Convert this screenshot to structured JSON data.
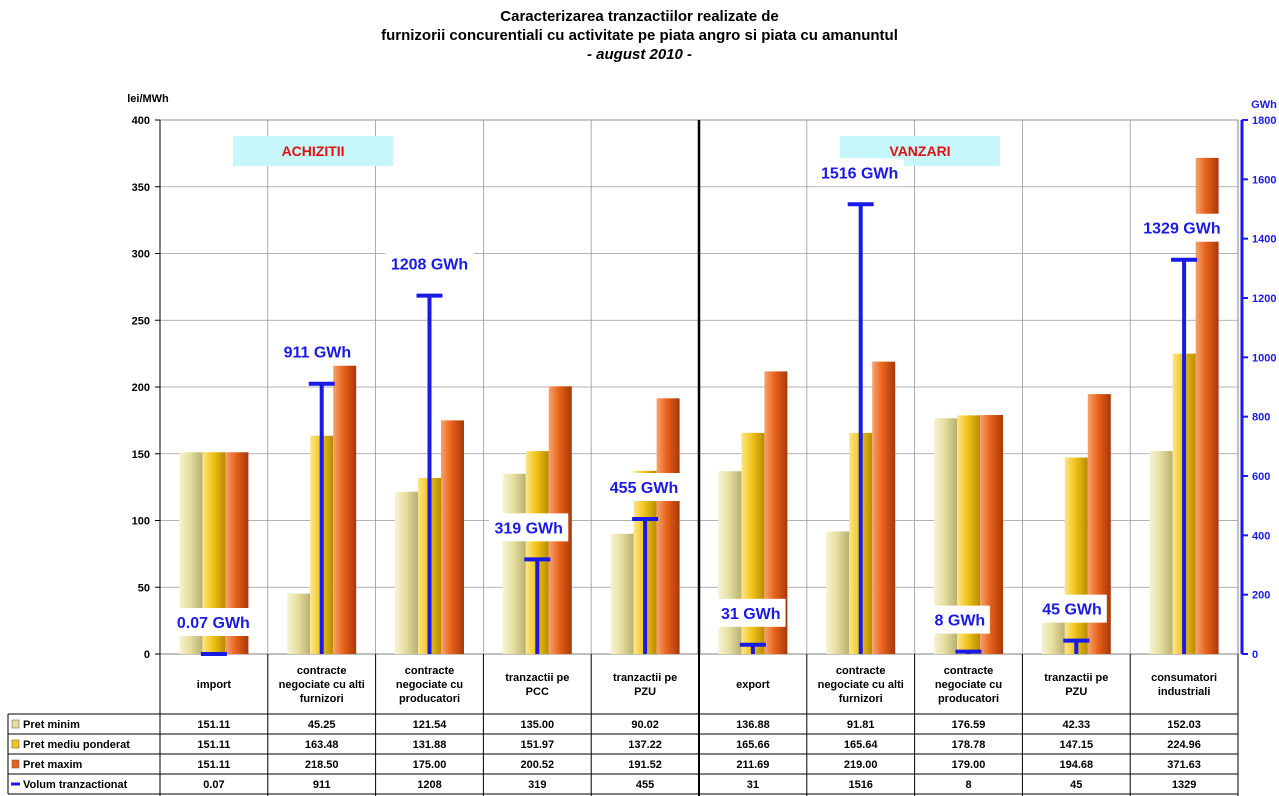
{
  "title_line1": "Caracterizarea tranzactiilor realizate de",
  "title_line2": "furnizorii concurentiali cu activitate pe piata angro si piata cu amanuntul",
  "title_line3": "- august 2010 -",
  "colors": {
    "pret_minim": "#e6dfa0",
    "pret_mediu": "#f2c419",
    "pret_maxim": "#e8621a",
    "volum": "#1a1ae6",
    "grid": "#9a9a9a",
    "section_label_bg": "#c8f7fb",
    "section_label_text": "#e01010"
  },
  "chart_data": {
    "type": "bar",
    "categories": [
      "import",
      "contracte negociate cu alti furnizori",
      "contracte negociate cu producatori",
      "tranzactii pe PCC",
      "tranzactii pe PZU",
      "export",
      "contracte negociate cu alti furnizori",
      "contracte negociate cu producatori",
      "tranzactii pe PZU",
      "consumatori industriali"
    ],
    "category_lines": [
      [
        "import"
      ],
      [
        "contracte",
        "negociate cu alti",
        "furnizori"
      ],
      [
        "contracte",
        "negociate cu",
        "producatori"
      ],
      [
        "tranzactii pe",
        "PCC"
      ],
      [
        "tranzactii pe",
        "PZU"
      ],
      [
        "export"
      ],
      [
        "contracte",
        "negociate cu alti",
        "furnizori"
      ],
      [
        "contracte",
        "negociate cu",
        "producatori"
      ],
      [
        "tranzactii pe",
        "PZU"
      ],
      [
        "consumatori",
        "industriali"
      ]
    ],
    "series": [
      {
        "name": "Pret minim",
        "axis": "left",
        "values": [
          151.11,
          45.25,
          121.54,
          135.0,
          90.02,
          136.88,
          91.81,
          176.59,
          42.33,
          152.03
        ],
        "labels": [
          "151.11",
          "45.25",
          "121.54",
          "135.00",
          "90.02",
          "136.88",
          "91.81",
          "176.59",
          "42.33",
          "152.03"
        ]
      },
      {
        "name": "Pret mediu ponderat",
        "axis": "left",
        "values": [
          151.11,
          163.48,
          131.88,
          151.97,
          137.22,
          165.66,
          165.64,
          178.78,
          147.15,
          224.96
        ],
        "labels": [
          "151.11",
          "163.48",
          "131.88",
          "151.97",
          "137.22",
          "165.66",
          "165.64",
          "178.78",
          "147.15",
          "224.96"
        ]
      },
      {
        "name": "Pret maxim",
        "axis": "left",
        "values": [
          151.11,
          218.5,
          175.0,
          200.52,
          191.52,
          211.69,
          219.0,
          179.0,
          194.68,
          371.63
        ],
        "labels": [
          "151.11",
          "218.50",
          "175.00",
          "200.52",
          "191.52",
          "211.69",
          "219.00",
          "179.00",
          "194.68",
          "371.63"
        ]
      },
      {
        "name": "Volum tranzactionat",
        "axis": "right",
        "values": [
          0.07,
          911,
          1208,
          319,
          455,
          31,
          1516,
          8,
          45,
          1329
        ],
        "labels": [
          "0.07",
          "911",
          "1208",
          "319",
          "455",
          "31",
          "1516",
          "8",
          "45",
          "1329"
        ],
        "annotations": [
          "0.07 GWh",
          "911 GWh",
          "1208 GWh",
          "319 GWh",
          "455 GWh",
          "31 GWh",
          "1516 GWh",
          "8 GWh",
          "45 GWh",
          "1329 GWh"
        ]
      }
    ],
    "ylabel_left": "lei/MWh",
    "ylabel_right": "GWh",
    "ylim_left": [
      0,
      400
    ],
    "ylim_right": [
      0,
      1800
    ],
    "yticks_left": [
      0,
      50,
      100,
      150,
      200,
      250,
      300,
      350,
      400
    ],
    "yticks_right": [
      0,
      200,
      400,
      600,
      800,
      1000,
      1200,
      1400,
      1600,
      1800
    ],
    "section_labels": [
      "ACHIZITII",
      "VANZARI"
    ],
    "grid": true,
    "data_table": true
  }
}
